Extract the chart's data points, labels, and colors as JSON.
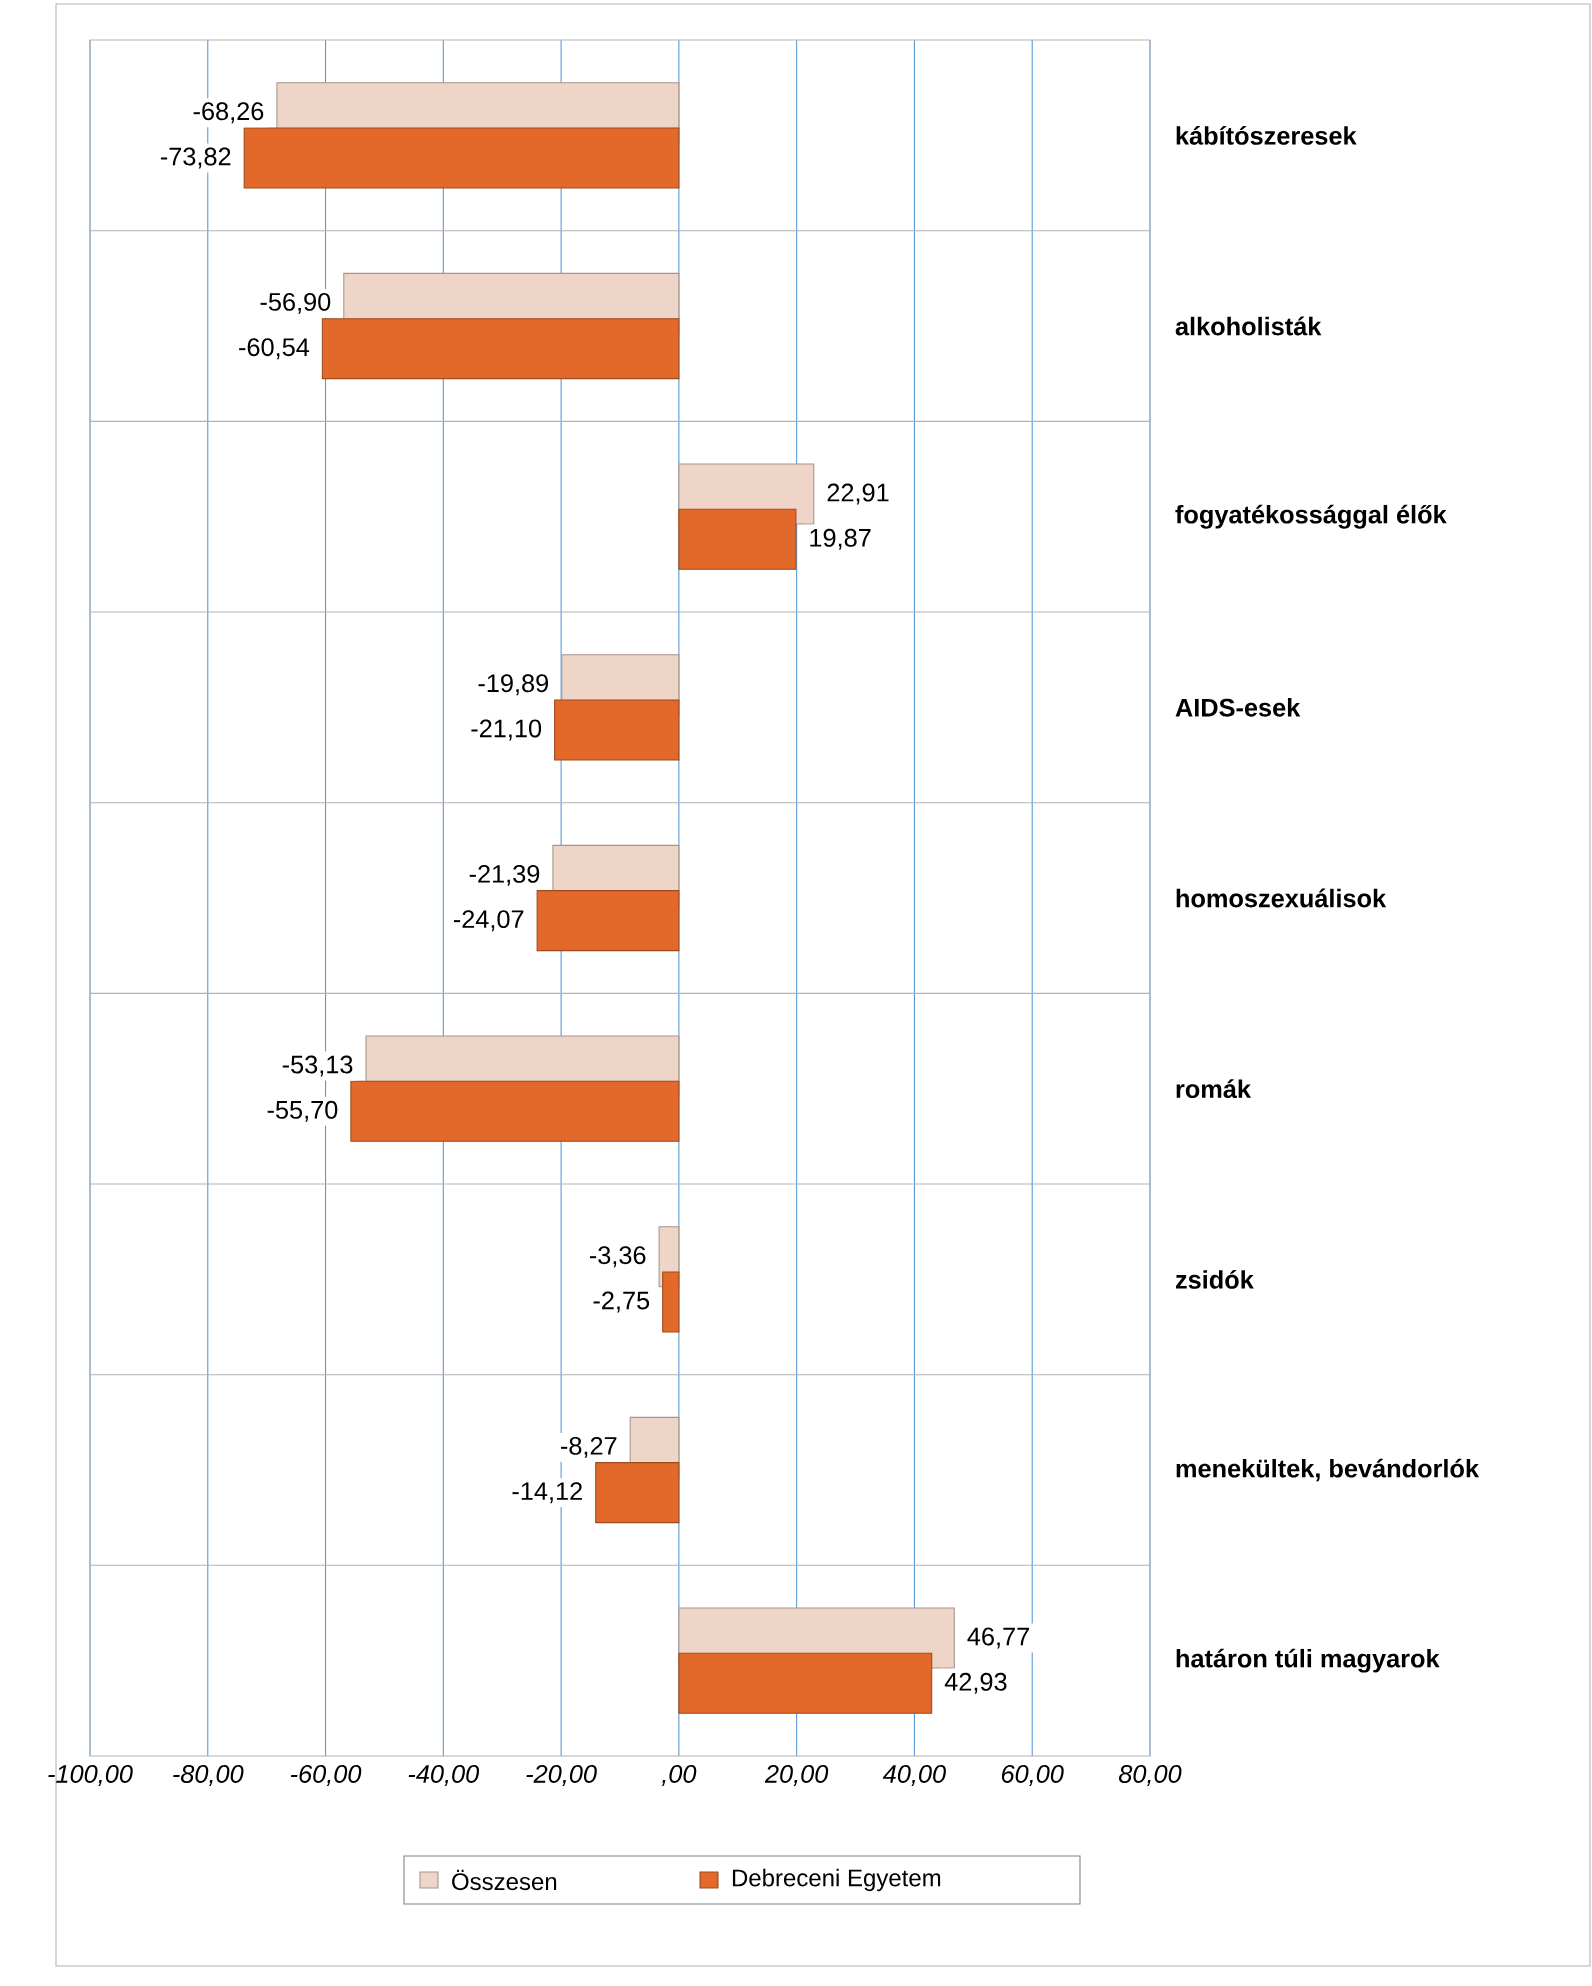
{
  "chart_data": {
    "type": "bar",
    "orientation": "horizontal",
    "categories": [
      "kábítószeresek",
      "alkoholisták",
      "fogyatékossággal élők",
      "AIDS-esek",
      "homoszexuálisok",
      "romák",
      "zsidók",
      "menekültek, bevándorlók",
      "határon túli magyarok"
    ],
    "series": [
      {
        "name": "Összesen",
        "color": "#efd5c8",
        "values": [
          -68.26,
          -56.9,
          22.91,
          -19.89,
          -21.39,
          -53.13,
          -3.36,
          -8.27,
          46.77
        ],
        "value_labels": [
          "-68,26",
          "-56,90",
          "22,91",
          "-19,89",
          "-21,39",
          "-53,13",
          "-3,36",
          "-8,27",
          "46,77"
        ]
      },
      {
        "name": "Debreceni Egyetem",
        "color": "#e2692a",
        "values": [
          -73.82,
          -60.54,
          19.87,
          -21.1,
          -24.07,
          -55.7,
          -2.75,
          -14.12,
          42.93
        ],
        "value_labels": [
          "-73,82",
          "-60,54",
          "19,87",
          "-21,10",
          "-24,07",
          "-55,70",
          "-2,75",
          "-14,12",
          "42,93"
        ]
      }
    ],
    "xlim": [
      -100,
      80
    ],
    "xticks": [
      {
        "value": -100,
        "label": "-100,00"
      },
      {
        "value": -80,
        "label": "-80,00"
      },
      {
        "value": -60,
        "label": "-60,00"
      },
      {
        "value": -40,
        "label": "-40,00"
      },
      {
        "value": -20,
        "label": "-20,00"
      },
      {
        "value": 0,
        "label": ",00"
      },
      {
        "value": 20,
        "label": "20,00"
      },
      {
        "value": 40,
        "label": "40,00"
      },
      {
        "value": 60,
        "label": "60,00"
      },
      {
        "value": 80,
        "label": "80,00"
      }
    ],
    "grid": "x",
    "legend": "bottom"
  }
}
